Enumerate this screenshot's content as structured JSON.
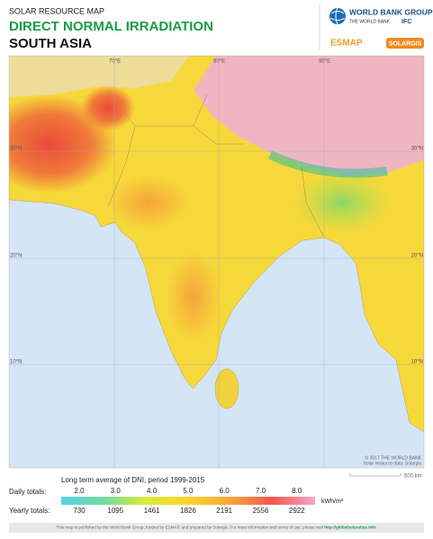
{
  "header": {
    "subtitle": "SOLAR RESOURCE MAP",
    "title": "DIRECT NORMAL IRRADIATION",
    "region": "SOUTH ASIA"
  },
  "logos": {
    "wbg": "WORLD BANK GROUP",
    "wb": "THE WORLD BANK",
    "ifc": "IFC",
    "esmap": "ESMAP",
    "solargis": "SOLARGIS"
  },
  "map": {
    "longitudes": [
      "70°E",
      "80°E",
      "90°E"
    ],
    "latitudes": [
      "30°N",
      "20°N",
      "10°N"
    ],
    "copyright": "© 2017 THE WORLD BANK",
    "source": "Solar resource data: Solargis",
    "scale": "500 km"
  },
  "legend": {
    "title": "Long term average of DNI, period 1999-2015",
    "daily_label": "Daily totals:",
    "daily": [
      "2.0",
      "3.0",
      "4.0",
      "5.0",
      "6.0",
      "7.0",
      "8.0"
    ],
    "unit": "kWh/m²",
    "yearly_label": "Yearly totals:",
    "yearly": [
      "730",
      "1095",
      "1461",
      "1826",
      "2191",
      "2556",
      "2922"
    ]
  },
  "footer": {
    "text": "This map is published by the World Bank Group, funded by ESMAP, and prepared by Solargis. For more information and terms of use, please visit",
    "link": "http://globalsolaratlas.info"
  }
}
